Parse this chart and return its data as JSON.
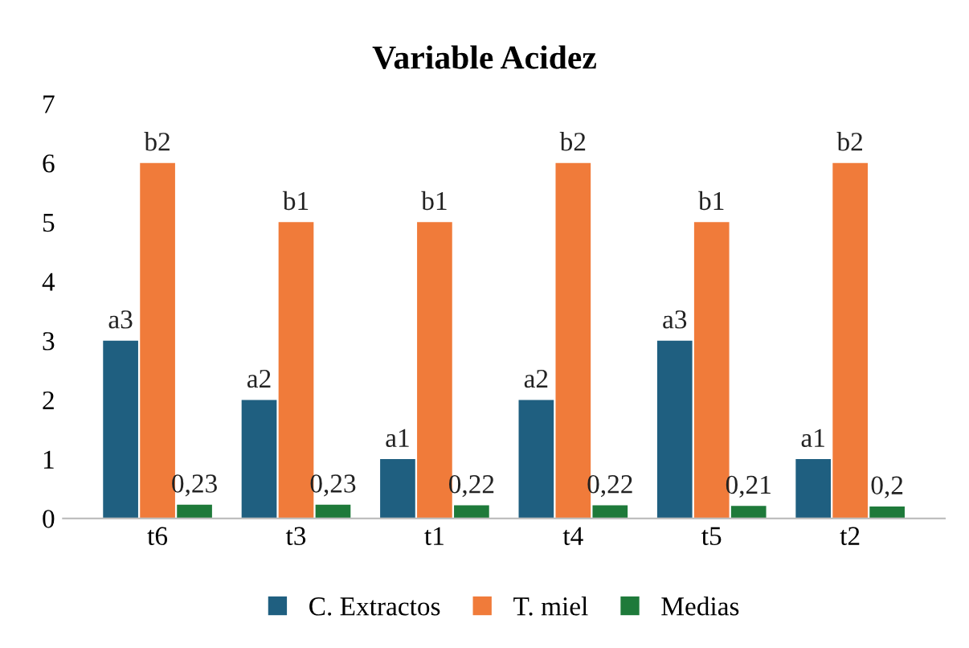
{
  "chart_data": {
    "type": "bar",
    "title": "Variable Acidez",
    "categories": [
      "t6",
      "t3",
      "t1",
      "t4",
      "t5",
      "t2"
    ],
    "series": [
      {
        "name": "C. Extractos",
        "color": "#1f5f80",
        "values": [
          3,
          2,
          1,
          2,
          3,
          1
        ],
        "value_labels": [
          "a3",
          "a2",
          "a1",
          "a2",
          "a3",
          "a1"
        ]
      },
      {
        "name": "T. miel",
        "color": "#f07b3a",
        "values": [
          6,
          5,
          5,
          6,
          5,
          6
        ],
        "value_labels": [
          "b2",
          "b1",
          "b1",
          "b2",
          "b1",
          "b2"
        ]
      },
      {
        "name": "Medias",
        "color": "#1e7a3a",
        "values": [
          0.23,
          0.23,
          0.22,
          0.22,
          0.21,
          0.2
        ],
        "value_labels": [
          "0,23",
          "0,23",
          "0,22",
          "0,22",
          "0,21",
          "0,2"
        ]
      }
    ],
    "ylim": [
      0,
      7
    ],
    "yticks": [
      0,
      1,
      2,
      3,
      4,
      5,
      6,
      7
    ],
    "grid": false,
    "legend": "bottom"
  }
}
